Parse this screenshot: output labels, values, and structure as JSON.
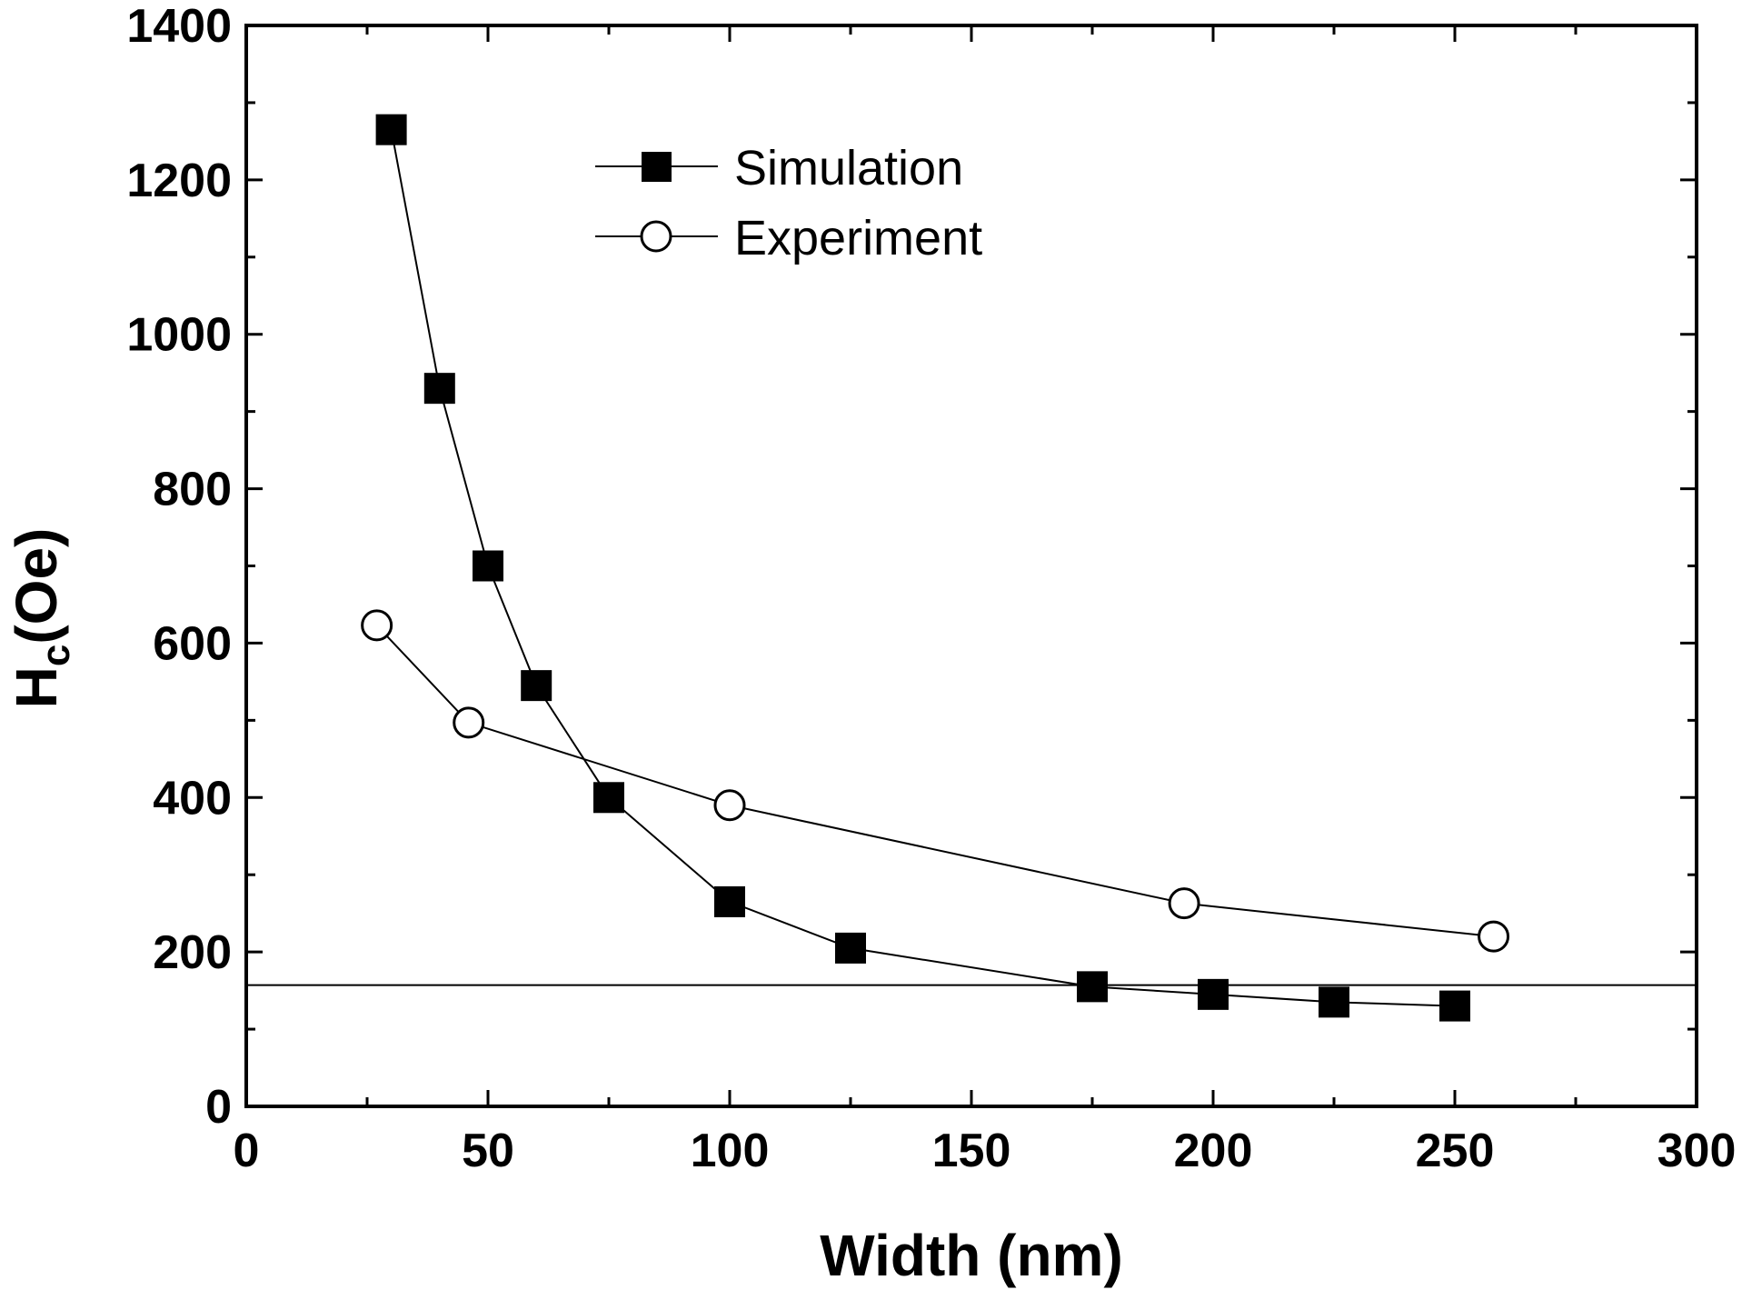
{
  "chart_data": {
    "type": "line",
    "title": "",
    "xlabel": "Width (nm)",
    "ylabel": {
      "main": "H",
      "subscript": "c",
      "suffix": "(Oe)"
    },
    "xlim": [
      0,
      300
    ],
    "ylim": [
      0,
      1400
    ],
    "x_ticks": [
      0,
      50,
      100,
      150,
      200,
      250,
      300
    ],
    "y_ticks": [
      0,
      200,
      400,
      600,
      800,
      1000,
      1200,
      1400
    ],
    "x_tick_labels": [
      "0",
      "50",
      "100",
      "150",
      "200",
      "250",
      "300"
    ],
    "y_tick_labels": [
      "0",
      "200",
      "400",
      "600",
      "800",
      "1000",
      "1200",
      "1400"
    ],
    "reference_line_y": 157,
    "legend_position": "top-center",
    "series": [
      {
        "name": "Simulation",
        "marker": "filled-square",
        "x": [
          30,
          40,
          50,
          60,
          75,
          100,
          125,
          175,
          200,
          225,
          250
        ],
        "y": [
          1265,
          930,
          700,
          545,
          400,
          265,
          205,
          155,
          145,
          135,
          130
        ]
      },
      {
        "name": "Experiment",
        "marker": "open-circle",
        "x": [
          27,
          46,
          100,
          194,
          258
        ],
        "y": [
          623,
          497,
          390,
          263,
          220
        ]
      }
    ]
  }
}
